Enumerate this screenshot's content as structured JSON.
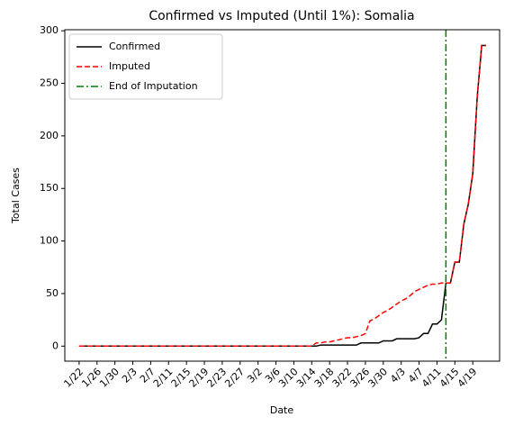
{
  "chart_data": {
    "type": "line",
    "title": "Confirmed vs Imputed (Until 1%): Somalia",
    "x_label": "Date",
    "y_label": "Total Cases",
    "categories": [
      "1/22",
      null,
      null,
      null,
      "1/26",
      null,
      null,
      null,
      "1/30",
      null,
      null,
      null,
      "2/3",
      null,
      null,
      null,
      "2/7",
      null,
      null,
      null,
      "2/11",
      null,
      null,
      null,
      "2/15",
      null,
      null,
      null,
      "2/19",
      null,
      null,
      null,
      "2/23",
      null,
      null,
      null,
      "2/27",
      null,
      null,
      null,
      "3/2",
      null,
      null,
      null,
      "3/6",
      null,
      null,
      null,
      "3/10",
      null,
      null,
      null,
      "3/14",
      null,
      null,
      null,
      "3/18",
      null,
      null,
      null,
      "3/22",
      null,
      null,
      null,
      "3/26",
      null,
      null,
      null,
      "3/30",
      null,
      null,
      null,
      "4/3",
      null,
      null,
      null,
      "4/7",
      null,
      null,
      null,
      "4/11",
      null,
      null,
      null,
      "4/15",
      null,
      null,
      null,
      "4/19",
      null,
      null,
      null
    ],
    "series": [
      {
        "name": "Confirmed",
        "color": "#000000",
        "linestyle": "solid",
        "values": [
          0,
          0,
          0,
          0,
          0,
          0,
          0,
          0,
          0,
          0,
          0,
          0,
          0,
          0,
          0,
          0,
          0,
          0,
          0,
          0,
          0,
          0,
          0,
          0,
          0,
          0,
          0,
          0,
          0,
          0,
          0,
          0,
          0,
          0,
          0,
          0,
          0,
          0,
          0,
          0,
          0,
          0,
          0,
          0,
          0,
          0,
          0,
          0,
          0,
          0,
          0,
          0,
          0,
          0,
          1,
          1,
          1,
          1,
          1,
          1,
          1,
          1,
          1,
          3,
          3,
          3,
          3,
          3,
          5,
          5,
          5,
          7,
          7,
          7,
          7,
          7,
          8,
          12,
          12,
          21,
          21,
          25,
          60,
          60,
          80,
          80,
          116,
          135,
          164,
          237,
          286,
          286
        ]
      },
      {
        "name": "Imputed",
        "color": "#ff0000",
        "linestyle": "dashed",
        "values": [
          0,
          0,
          0,
          0,
          0,
          0,
          0,
          0,
          0,
          0,
          0,
          0,
          0,
          0,
          0,
          0,
          0,
          0,
          0,
          0,
          0,
          0,
          0,
          0,
          0,
          0,
          0,
          0,
          0,
          0,
          0,
          0,
          0,
          0,
          0,
          0,
          0,
          0,
          0,
          0,
          0,
          0,
          0,
          0,
          0,
          0,
          0,
          0,
          0,
          0,
          0,
          0,
          0,
          3,
          3,
          4,
          4,
          5,
          6,
          7,
          8,
          8,
          9,
          10,
          12,
          24,
          26,
          29,
          32,
          34,
          37,
          40,
          43,
          45,
          48,
          52,
          54,
          56,
          58,
          59,
          59,
          60,
          60,
          60,
          80,
          80,
          116,
          135,
          164,
          237,
          286,
          286
        ]
      }
    ],
    "vlines": [
      {
        "name": "End of Imputation",
        "color": "#008000",
        "linestyle": "dashdot",
        "at": 82
      }
    ],
    "xlim": [
      -3.2,
      94
    ],
    "ylim": [
      -14.3,
      301
    ],
    "yticks": [
      0,
      50,
      100,
      150,
      200,
      250,
      300
    ],
    "legend": "upper-left"
  }
}
